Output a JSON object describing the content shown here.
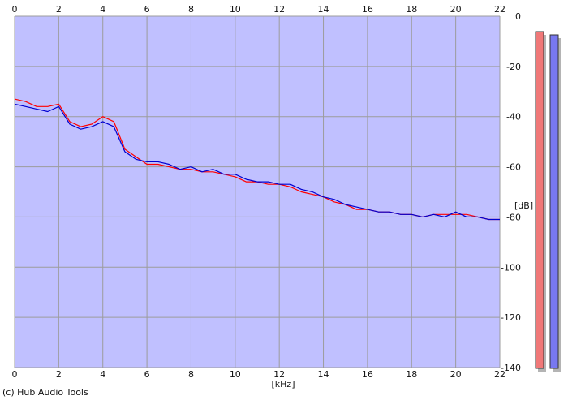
{
  "credit": "(c) Hub Audio Tools",
  "colors": {
    "background": "#ffffff",
    "plot_fill": "#c0c0ff",
    "grid": "#9c9c9c",
    "left_channel": "#ff0000",
    "right_channel": "#0000d0",
    "left_meter": "#f07878",
    "right_meter": "#7878f0",
    "meter_shadow": "#b4b4b4"
  },
  "chart_data": {
    "type": "line",
    "title": "",
    "xlabel": "[kHz]",
    "ylabel": "[dB]",
    "xlim": [
      0,
      22
    ],
    "ylim": [
      -140,
      0
    ],
    "x_ticks": [
      0,
      2,
      4,
      6,
      8,
      10,
      12,
      14,
      16,
      18,
      20,
      22
    ],
    "x_tick_labels": [
      "0",
      "2",
      "4",
      "6",
      "8",
      "10",
      "12",
      "14",
      "16",
      "18",
      "20",
      "22"
    ],
    "y_ticks": [
      0,
      -20,
      -40,
      -60,
      -80,
      -100,
      -120,
      -140
    ],
    "y_tick_labels": [
      "0",
      "-20",
      "-40",
      "-60",
      "-80",
      "-100",
      "-120",
      "-140"
    ],
    "grid": true,
    "x": [
      0,
      0.5,
      1,
      1.5,
      2,
      2.5,
      3,
      3.5,
      4,
      4.5,
      5,
      5.5,
      6,
      6.5,
      7,
      7.5,
      8,
      8.5,
      9,
      9.5,
      10,
      10.5,
      11,
      11.5,
      12,
      12.5,
      13,
      13.5,
      14,
      14.5,
      15,
      15.5,
      16,
      16.5,
      17,
      17.5,
      18,
      18.5,
      19,
      19.5,
      20,
      20.5,
      21,
      21.5,
      22
    ],
    "series": [
      {
        "color": "#ff0000",
        "values": [
          -33,
          -34,
          -36,
          -36,
          -35,
          -42,
          -44,
          -43,
          -40,
          -42,
          -53,
          -56,
          -59,
          -59,
          -60,
          -61,
          -61,
          -62,
          -62,
          -63,
          -64,
          -66,
          -66,
          -67,
          -67,
          -68,
          -70,
          -71,
          -72,
          -74,
          -75,
          -77,
          -77,
          -78,
          -78,
          -79,
          -79,
          -80,
          -79,
          -79,
          -79,
          -79,
          -80,
          -81,
          -81
        ]
      },
      {
        "color": "#0000d0",
        "values": [
          -35,
          -36,
          -37,
          -38,
          -36,
          -43,
          -45,
          -44,
          -42,
          -44,
          -54,
          -57,
          -58,
          -58,
          -59,
          -61,
          -60,
          -62,
          -61,
          -63,
          -63,
          -65,
          -66,
          -66,
          -67,
          -67,
          -69,
          -70,
          -72,
          -73,
          -75,
          -76,
          -77,
          -78,
          -78,
          -79,
          -79,
          -80,
          -79,
          -80,
          -78,
          -80,
          -80,
          -81,
          -81
        ]
      }
    ]
  }
}
